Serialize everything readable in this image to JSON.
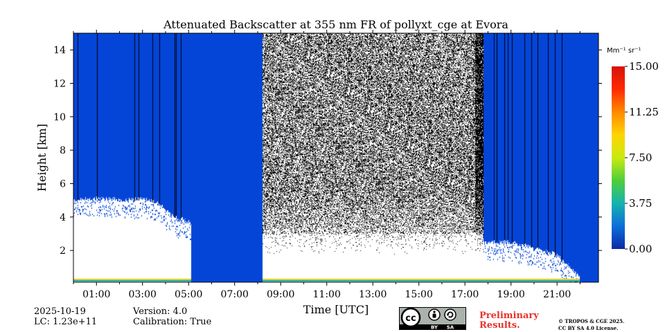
{
  "chart_data": {
    "type": "heatmap",
    "title": "Attenuated Backscatter at 355 nm FR of pollyxt_cge at Evora",
    "xlabel": "Time [UTC]",
    "ylabel": "Height [km]",
    "xlim": [
      0.0,
      22.8
    ],
    "ylim": [
      0.1,
      15.0
    ],
    "x_ticks": [
      1,
      3,
      5,
      7,
      9,
      11,
      13,
      15,
      17,
      19,
      21
    ],
    "x_tick_labels": [
      "01:00",
      "03:00",
      "05:00",
      "07:00",
      "09:00",
      "11:00",
      "13:00",
      "15:00",
      "17:00",
      "19:00",
      "21:00"
    ],
    "y_ticks": [
      2,
      4,
      6,
      8,
      10,
      12,
      14
    ],
    "y_tick_labels": [
      "2",
      "4",
      "6",
      "8",
      "10",
      "12",
      "14"
    ],
    "colorbar": {
      "label": "Mm⁻¹ sr⁻¹",
      "range": [
        0.0,
        15.0
      ],
      "ticks": [
        0.0,
        3.75,
        7.5,
        11.25,
        15.0
      ],
      "tick_labels": [
        "0.00",
        "3.75",
        "7.50",
        "11.25",
        "15.00"
      ],
      "colormap": [
        "#0a2aa8",
        "#0d6fd8",
        "#16b2b0",
        "#4fce3a",
        "#c9ea10",
        "#ffd400",
        "#ff8a00",
        "#ff2a00",
        "#d61208"
      ]
    },
    "regions": [
      {
        "desc": "low signal",
        "start": 0.0,
        "end": 5.1,
        "cloud_base_km": [
          5.0,
          5.1,
          5.1,
          5.0,
          5.1,
          4.9,
          4.0,
          3.7
        ]
      },
      {
        "desc": "no data",
        "start": 5.1,
        "end": 8.2
      },
      {
        "desc": "noise",
        "start": 8.2,
        "end": 17.8,
        "signal_top_km": 3.0
      },
      {
        "desc": "low signal",
        "start": 17.8,
        "end": 22.0,
        "cloud_base_km": [
          2.5,
          2.5,
          2.2,
          1.8,
          0.5
        ]
      },
      {
        "desc": "no data",
        "start": 22.0,
        "end": 22.8
      }
    ],
    "colors": {
      "no_data": "#0445d8",
      "noise_dark": "#000000",
      "ground_layer": [
        "#0ea5a0",
        "#d8e84a",
        "#f2c200"
      ]
    }
  },
  "info": {
    "date": "2025-10-19",
    "lc": "LC: 1.23e+11",
    "version": "Version: 4.0",
    "calibration": "Calibration: True"
  },
  "license": {
    "cc_label": "cc",
    "by_label": "BY",
    "sa_label": "SA",
    "preliminary_line1": "Preliminary",
    "preliminary_line2": "Results.",
    "copyright_line1": "© TROPOS & CGE 2025.",
    "copyright_line2": "CC BY SA 4.0 License.",
    "preliminary_color": "#e8332d"
  }
}
